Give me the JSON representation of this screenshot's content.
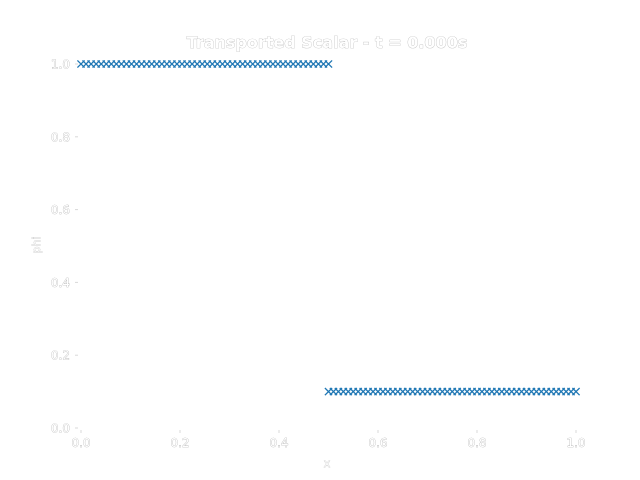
{
  "chart_data": {
    "type": "scatter",
    "title": "Transported Scalar - t = 0.000s",
    "xlabel": "x",
    "ylabel": "phi",
    "xlim": [
      0.0,
      1.0
    ],
    "ylim": [
      0.0,
      1.0
    ],
    "x_ticks": [
      "0.0",
      "0.2",
      "0.4",
      "0.6",
      "0.8",
      "1.0"
    ],
    "y_ticks": [
      "0.0",
      "0.2",
      "0.4",
      "0.6",
      "0.8",
      "1.0"
    ],
    "grid": false,
    "marker": "x",
    "color": "#1f77b4",
    "series": [
      {
        "segments": [
          {
            "x_start": 0.0,
            "x_end": 0.5,
            "y": 1.0,
            "points": 50
          },
          {
            "x_start": 0.5,
            "x_end": 1.0,
            "y": 0.1,
            "points": 51
          }
        ]
      }
    ]
  }
}
